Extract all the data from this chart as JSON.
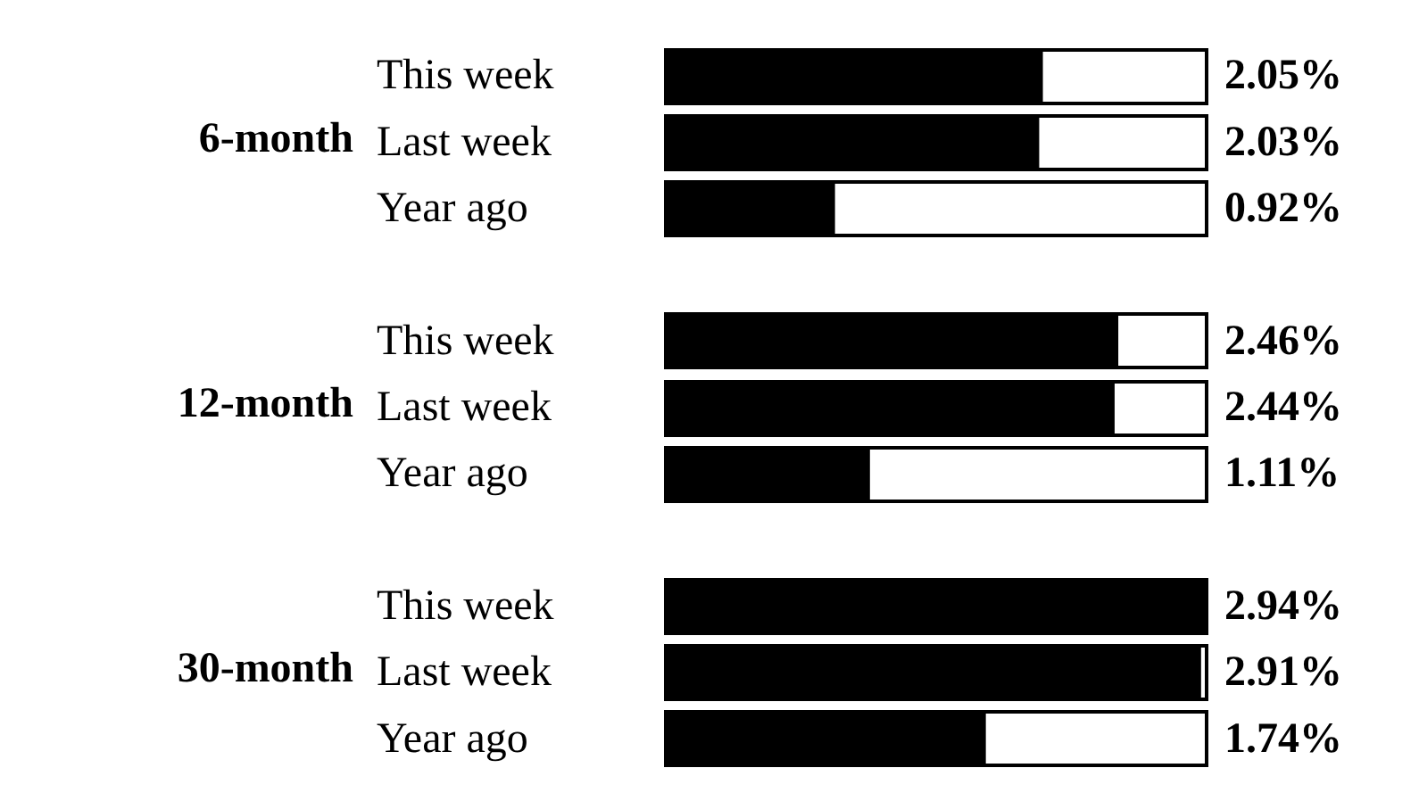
{
  "chart_data": {
    "type": "bar",
    "orientation": "horizontal",
    "categories": [
      "This week",
      "Last week",
      "Year ago",
      null,
      "This week",
      "Last week",
      "Year ago",
      null,
      "This week",
      "Last week",
      "Year ago"
    ],
    "values": [
      2.05,
      2.03,
      0.92,
      null,
      2.46,
      2.44,
      1.11,
      null,
      2.94,
      2.91,
      1.74
    ],
    "value_labels": [
      "2.05%",
      "2.03%",
      "0.92%",
      null,
      "2.46%",
      "2.44%",
      "1.11%",
      null,
      "2.94%",
      "2.91%",
      "1.74%"
    ],
    "color": "#000000",
    "annotations": [
      "6-month",
      "12-month",
      "30-month"
    ],
    "tick_labels": "y"
  }
}
